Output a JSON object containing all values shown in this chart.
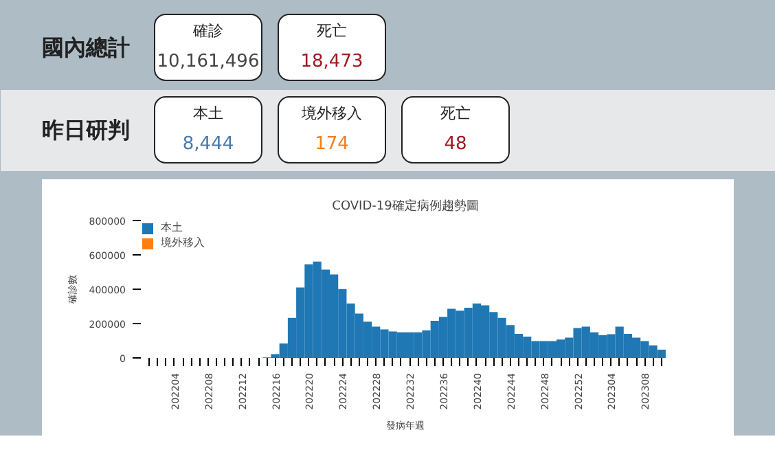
{
  "chart_data": [
    {
      "type": "other",
      "annotations": [
        "國內總計",
        "確診",
        "10,161,496",
        "死亡",
        "18,473",
        "昨日研判",
        "本土",
        "8,444",
        "境外移入",
        "174",
        "死亡",
        "48"
      ],
      "colors": [
        "#222222",
        "#222222",
        "#444444",
        "#222222",
        "#a01a22",
        "#222222",
        "#222222",
        "#4a79b0",
        "#222222",
        "#f08020",
        "#222222",
        "#a01a22"
      ]
    },
    {
      "type": "bar",
      "title": "COVID-19確定病例趨勢圖",
      "xlabel": "發病年週",
      "ylabel": "確診數",
      "categories": [
        null,
        null,
        null,
        "202204",
        null,
        null,
        null,
        "202208",
        null,
        null,
        null,
        "202212",
        null,
        null,
        null,
        "202216",
        null,
        null,
        null,
        "202220",
        null,
        null,
        null,
        "202224",
        null,
        null,
        null,
        "202228",
        null,
        null,
        null,
        "202232",
        null,
        null,
        null,
        "202236",
        null,
        null,
        null,
        "202240",
        null,
        null,
        null,
        "202244",
        null,
        null,
        null,
        "202248",
        null,
        null,
        null,
        "202252",
        null,
        null,
        null,
        "202304",
        null,
        null,
        null,
        "202308",
        null,
        null
      ],
      "series": [
        {
          "name": "本土",
          "color": "#1f77b4",
          "values": [
            0,
            0,
            0,
            0,
            0,
            0,
            0,
            0,
            0,
            0,
            0,
            0,
            0,
            0,
            3000,
            22000,
            84000,
            233000,
            410000,
            545000,
            561000,
            514000,
            486000,
            401000,
            317000,
            258000,
            211000,
            182000,
            166000,
            154000,
            149000,
            149000,
            149000,
            160000,
            216000,
            239000,
            286000,
            275000,
            292000,
            317000,
            306000,
            267000,
            233000,
            191000,
            140000,
            124000,
            98000,
            98000,
            98000,
            107000,
            118000,
            174000,
            182000,
            149000,
            132000,
            138000,
            182000,
            140000,
            118000,
            98000,
            73000,
            48000
          ]
        },
        {
          "name": "境外移入",
          "color": "#ff7f0e",
          "values": [
            0,
            0,
            0,
            0,
            0,
            0,
            0,
            0,
            0,
            0,
            0,
            0,
            0,
            0,
            0,
            0,
            0,
            0,
            0,
            0,
            0,
            0,
            0,
            0,
            0,
            0,
            0,
            0,
            0,
            0,
            0,
            0,
            0,
            0,
            0,
            0,
            0,
            0,
            0,
            0,
            0,
            0,
            0,
            0,
            0,
            0,
            0,
            0,
            0,
            0,
            0,
            0,
            0,
            0,
            0,
            0,
            0,
            0,
            0,
            0,
            0,
            0
          ]
        }
      ],
      "ylim": [
        0,
        800000
      ],
      "yticks": [
        0,
        200000,
        400000,
        600000,
        800000
      ],
      "grid": false,
      "legend": "top left"
    }
  ]
}
